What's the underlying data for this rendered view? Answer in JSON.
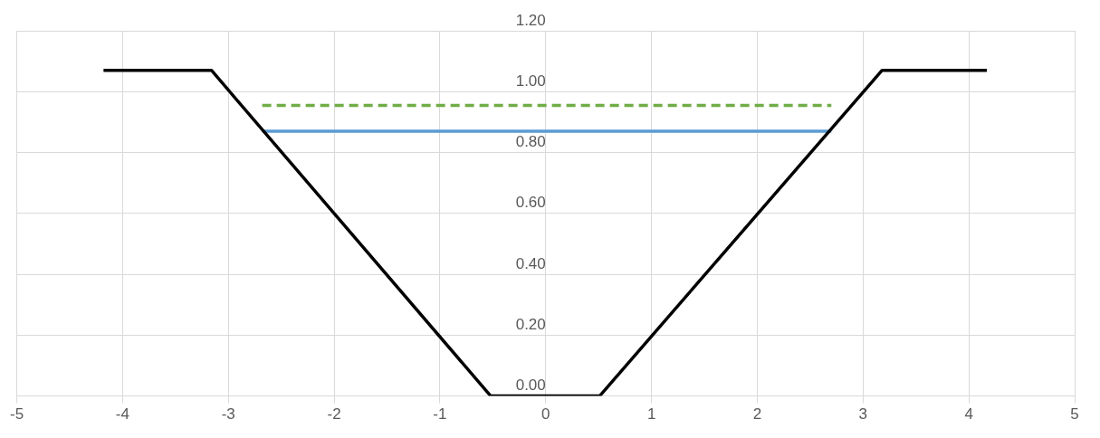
{
  "chart_data": {
    "type": "line",
    "xlim": [
      -5,
      5
    ],
    "xticks": [
      -5,
      -4,
      -3,
      -2,
      -1,
      0,
      1,
      2,
      3,
      4,
      5
    ],
    "ylim": [
      0,
      1.2
    ],
    "yticks": [
      {
        "value": 0,
        "label": "0.00"
      },
      {
        "value": 0.2,
        "label": "0.20"
      },
      {
        "value": 0.4,
        "label": "0.40"
      },
      {
        "value": 0.6,
        "label": "0.60"
      },
      {
        "value": 0.8,
        "label": "0.80"
      },
      {
        "value": 1,
        "label": "1.00"
      },
      {
        "value": 1.2,
        "label": "1.20"
      }
    ],
    "grid": true,
    "legend": false,
    "marker": "none",
    "series": [
      {
        "color": "#000000",
        "line_style": "solid",
        "x": [
          -4.18,
          -3.16,
          -0.52,
          0.51,
          3.18,
          4.17
        ],
        "values": [
          1.07,
          1.07,
          0,
          0,
          1.07,
          1.07
        ]
      },
      {
        "color": "#70ad47",
        "line_style": "dashed",
        "x": [
          -2.68,
          2.7
        ],
        "values": [
          0.955,
          0.955
        ]
      },
      {
        "color": "#5b9bd5",
        "line_style": "solid",
        "x": [
          -2.68,
          2.7
        ],
        "values": [
          0.87,
          0.87
        ]
      }
    ]
  }
}
